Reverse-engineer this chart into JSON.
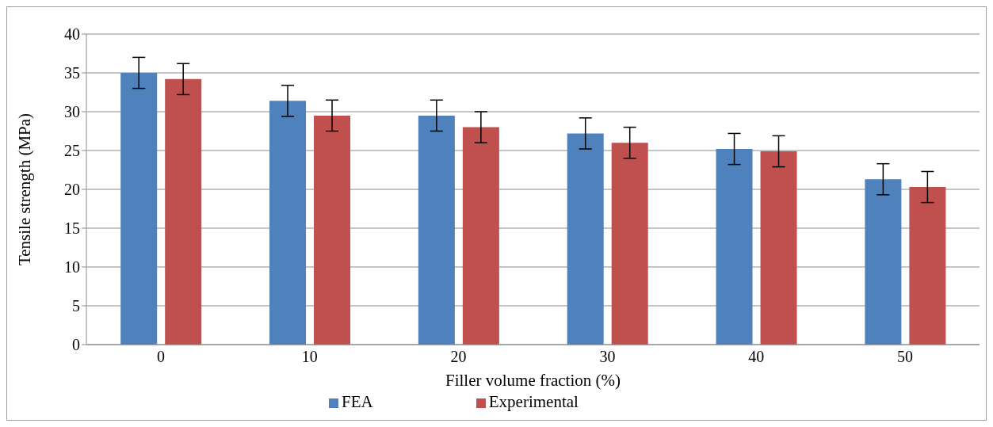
{
  "chart_data": {
    "type": "bar",
    "xlabel": "Filler volume fraction (%)",
    "ylabel": "Tensile strength (MPa)",
    "categories": [
      "0",
      "10",
      "20",
      "30",
      "40",
      "50"
    ],
    "series": [
      {
        "name": "FEA",
        "color": "#4f81bd",
        "values": [
          35.0,
          31.4,
          29.5,
          27.2,
          25.2,
          21.3
        ],
        "errors": [
          2,
          2,
          2,
          2,
          2,
          2
        ]
      },
      {
        "name": "Experimental",
        "color": "#c0504d",
        "values": [
          34.2,
          29.5,
          28.0,
          26.0,
          24.9,
          20.3
        ],
        "errors": [
          2,
          2,
          2,
          2,
          2,
          2
        ]
      }
    ],
    "ylim": [
      0,
      40
    ],
    "yticks": [
      0,
      5,
      10,
      15,
      20,
      25,
      30,
      35,
      40
    ],
    "grid": "y",
    "legend": "bottom"
  }
}
